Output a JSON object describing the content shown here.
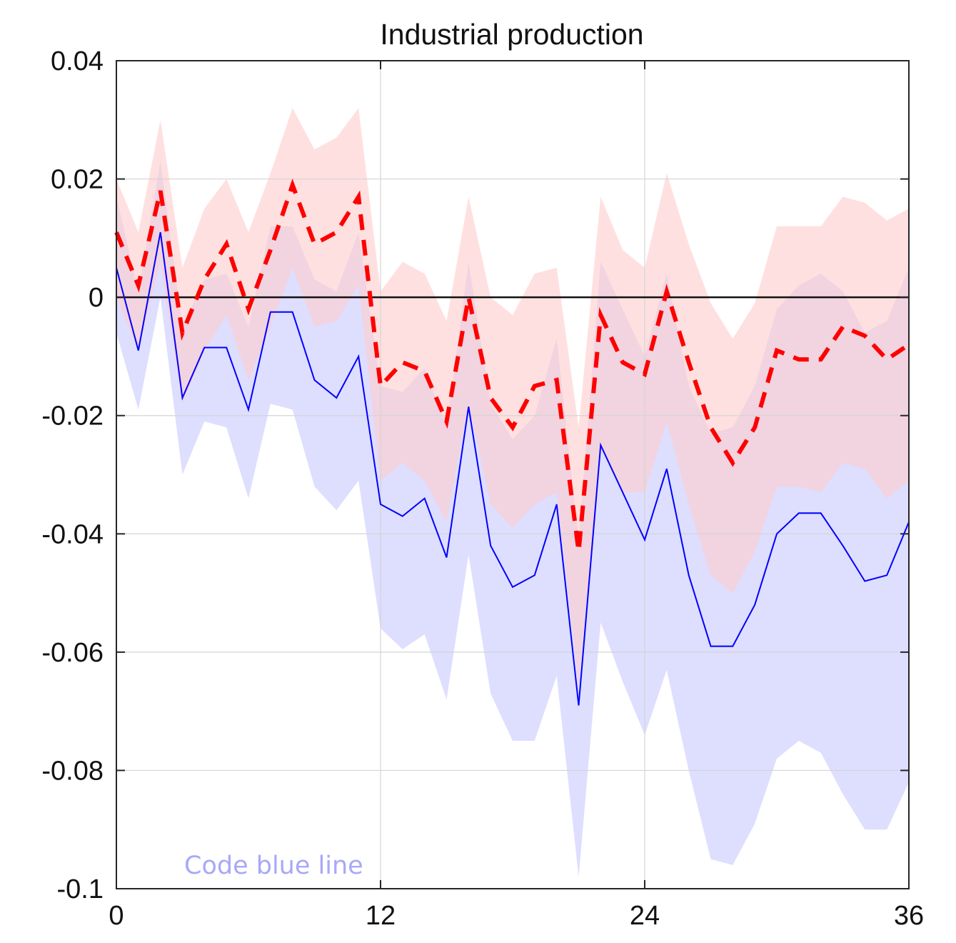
{
  "chart_data": {
    "type": "line",
    "title": "Industrial production",
    "xlabel": "",
    "ylabel": "",
    "xlim": [
      0,
      36
    ],
    "ylim": [
      -0.1,
      0.04
    ],
    "x_ticks": [
      0,
      12,
      24,
      36
    ],
    "x_tick_labels": [
      "0",
      "12",
      "24",
      "36"
    ],
    "y_ticks": [
      0.04,
      0.02,
      0,
      -0.02,
      -0.04,
      -0.06,
      -0.08,
      -0.1
    ],
    "y_tick_labels": [
      "0.04",
      "0.02",
      "0",
      "-0.02",
      "-0.04",
      "-0.06",
      "-0.08",
      "-0.1"
    ],
    "grid": true,
    "zero_line": true,
    "x": [
      0,
      1,
      2,
      3,
      4,
      5,
      6,
      7,
      8,
      9,
      10,
      11,
      12,
      13,
      14,
      15,
      16,
      17,
      18,
      19,
      20,
      21,
      22,
      23,
      24,
      25,
      26,
      27,
      28,
      29,
      30,
      31,
      32,
      33,
      34,
      35,
      36
    ],
    "series": [
      {
        "color": "#0000ff",
        "line_style": "solid",
        "band_color": "#c8c8ff",
        "values": [
          0.005,
          -0.009,
          0.011,
          -0.017,
          -0.0085,
          -0.0085,
          -0.019,
          -0.0025,
          -0.0025,
          -0.014,
          -0.017,
          -0.01,
          -0.035,
          -0.037,
          -0.034,
          -0.044,
          -0.0185,
          -0.042,
          -0.049,
          -0.047,
          -0.035,
          -0.069,
          -0.025,
          -0.033,
          -0.041,
          -0.029,
          -0.047,
          -0.059,
          -0.059,
          -0.052,
          -0.04,
          -0.0365,
          -0.0365,
          -0.042,
          -0.048,
          -0.047,
          -0.038
        ],
        "lower": [
          -0.006,
          -0.019,
          0.0,
          -0.03,
          -0.021,
          -0.022,
          -0.034,
          -0.018,
          -0.019,
          -0.032,
          -0.036,
          -0.031,
          -0.056,
          -0.0595,
          -0.057,
          -0.068,
          -0.0435,
          -0.067,
          -0.075,
          -0.075,
          -0.064,
          -0.098,
          -0.055,
          -0.065,
          -0.074,
          -0.063,
          -0.08,
          -0.095,
          -0.096,
          -0.089,
          -0.078,
          -0.075,
          -0.077,
          -0.084,
          -0.09,
          -0.09,
          -0.082
        ],
        "upper": [
          0.017,
          0.001,
          0.023,
          -0.005,
          0.003,
          0.004,
          -0.005,
          0.012,
          0.012,
          0.003,
          0.001,
          0.011,
          -0.015,
          -0.016,
          -0.012,
          -0.022,
          0.006,
          -0.018,
          -0.024,
          -0.02,
          -0.007,
          -0.041,
          0.006,
          -0.002,
          -0.01,
          0.004,
          -0.015,
          -0.023,
          -0.022,
          -0.015,
          -0.002,
          0.002,
          0.004,
          0.001,
          -0.006,
          -0.004,
          0.005
        ]
      },
      {
        "color": "#ff0000",
        "line_style": "dashed",
        "band_color": "#ffcccc",
        "values": [
          0.011,
          0.002,
          0.018,
          -0.006,
          0.003,
          0.009,
          -0.002,
          0.008,
          0.019,
          0.009,
          0.011,
          0.017,
          -0.015,
          -0.011,
          -0.0125,
          -0.021,
          0.0,
          -0.017,
          -0.022,
          -0.015,
          -0.014,
          -0.043,
          -0.003,
          -0.011,
          -0.013,
          0.001,
          -0.011,
          -0.022,
          -0.028,
          -0.022,
          -0.009,
          -0.0105,
          -0.0105,
          -0.005,
          -0.0065,
          -0.0105,
          -0.008
        ],
        "lower": [
          0.0,
          -0.009,
          0.006,
          -0.018,
          -0.009,
          -0.003,
          -0.014,
          -0.005,
          0.005,
          -0.005,
          -0.004,
          0.002,
          -0.031,
          -0.028,
          -0.031,
          -0.038,
          -0.018,
          -0.035,
          -0.039,
          -0.035,
          -0.033,
          -0.066,
          -0.025,
          -0.033,
          -0.033,
          -0.021,
          -0.035,
          -0.047,
          -0.05,
          -0.043,
          -0.032,
          -0.032,
          -0.033,
          -0.028,
          -0.029,
          -0.034,
          -0.031
        ],
        "upper": [
          0.02,
          0.011,
          0.03,
          0.005,
          0.015,
          0.02,
          0.011,
          0.021,
          0.032,
          0.025,
          0.027,
          0.032,
          0.001,
          0.006,
          0.004,
          -0.004,
          0.017,
          0.0,
          -0.003,
          0.004,
          0.005,
          -0.022,
          0.017,
          0.008,
          0.005,
          0.021,
          0.009,
          -0.001,
          -0.007,
          -0.001,
          0.012,
          0.012,
          0.012,
          0.017,
          0.016,
          0.013,
          0.015
        ]
      }
    ],
    "annotation": {
      "text": "Code blue line",
      "color": "#a8a8f8"
    }
  }
}
